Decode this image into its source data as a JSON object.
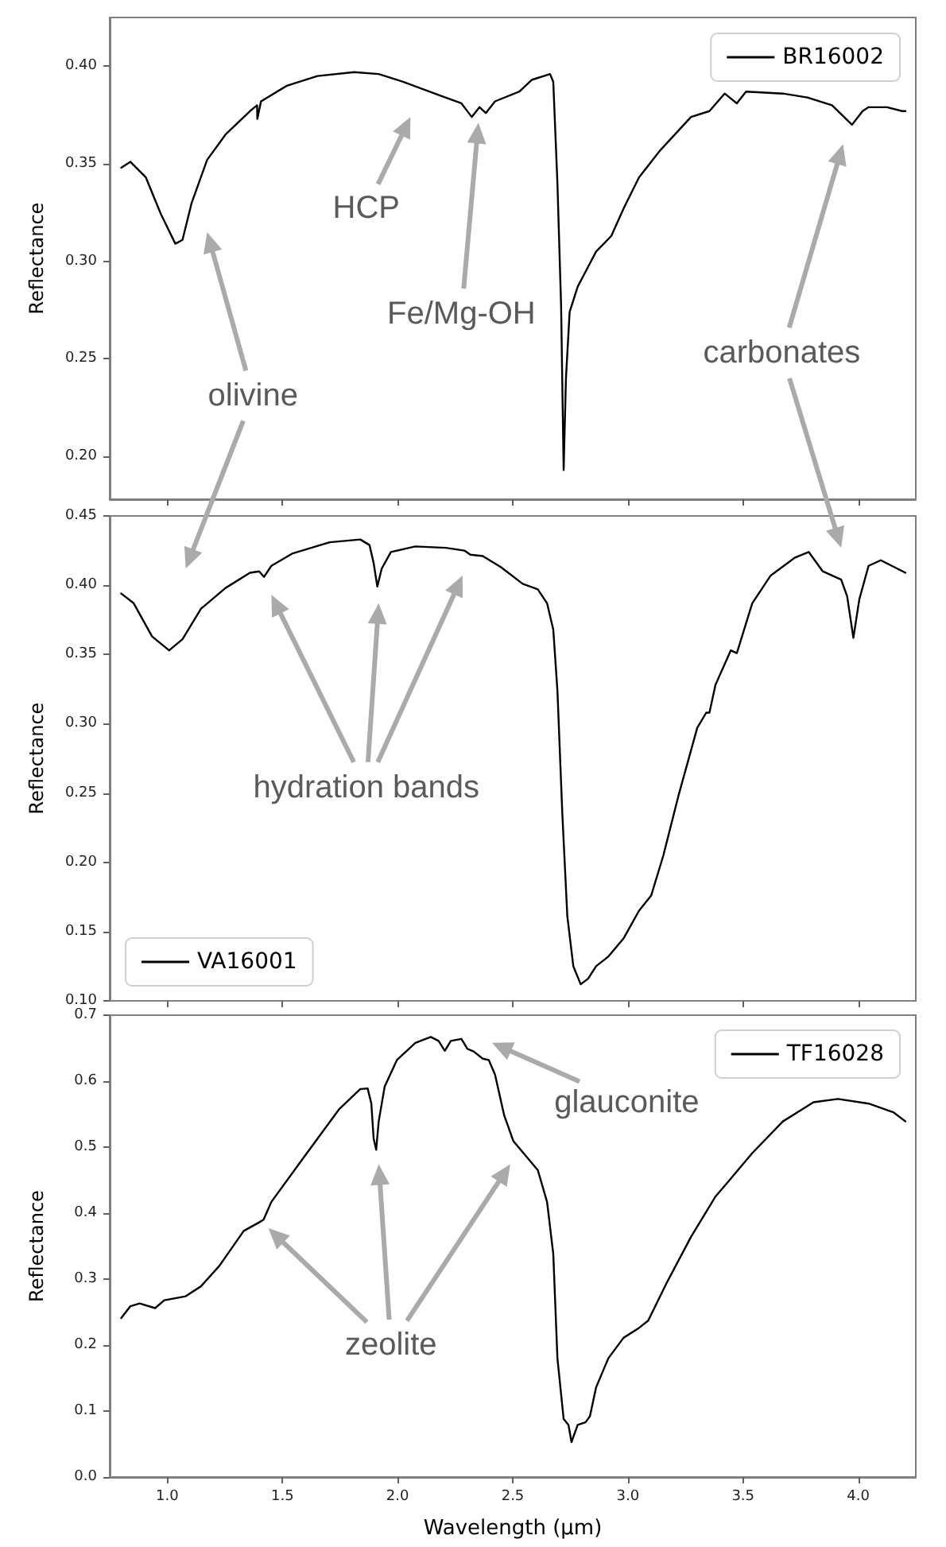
{
  "chart_data": [
    {
      "type": "line",
      "ylabel": "Reflectance",
      "xlim": [
        0.75,
        4.25
      ],
      "ylim": [
        0.178,
        0.425
      ],
      "tick_labels": "y",
      "legend": "top right",
      "xticks": [
        {
          "value": 1,
          "label": null
        },
        {
          "value": 1.5,
          "label": null
        },
        {
          "value": 2,
          "label": null
        },
        {
          "value": 2.5,
          "label": null
        },
        {
          "value": 3,
          "label": null
        },
        {
          "value": 3.5,
          "label": null
        },
        {
          "value": 4,
          "label": null
        }
      ],
      "yticks": [
        {
          "value": 0.2,
          "label": "0.20"
        },
        {
          "value": 0.25,
          "label": "0.25"
        },
        {
          "value": 0.3,
          "label": "0.30"
        },
        {
          "value": 0.35,
          "label": "0.35"
        },
        {
          "value": 0.4,
          "label": "0.40"
        }
      ],
      "annotations": [
        "olivine",
        "HCP",
        "Fe/Mg-OH",
        "carbonates"
      ],
      "series": [
        {
          "name": "BR16002",
          "color": "#000000",
          "x": [
            0.8,
            0.84,
            0.907,
            0.973,
            1.035,
            1.066,
            1.106,
            1.173,
            1.253,
            1.359,
            1.39,
            1.391,
            1.407,
            1.519,
            1.652,
            1.811,
            1.918,
            2.024,
            2.184,
            2.277,
            2.322,
            2.356,
            2.383,
            2.423,
            2.529,
            2.582,
            2.662,
            2.676,
            2.694,
            2.71,
            2.721,
            2.731,
            2.747,
            2.782,
            2.822,
            2.862,
            2.928,
            2.981,
            3.048,
            3.141,
            3.274,
            3.354,
            3.42,
            3.473,
            3.513,
            3.673,
            3.779,
            3.886,
            3.973,
            4.019,
            4.045,
            4.125,
            4.191,
            4.205
          ],
          "values": [
            0.348,
            0.351,
            0.343,
            0.324,
            0.309,
            0.311,
            0.33,
            0.352,
            0.365,
            0.377,
            0.38,
            0.373,
            0.382,
            0.39,
            0.395,
            0.397,
            0.396,
            0.392,
            0.385,
            0.381,
            0.374,
            0.379,
            0.376,
            0.382,
            0.387,
            0.393,
            0.396,
            0.392,
            0.34,
            0.277,
            0.193,
            0.24,
            0.274,
            0.287,
            0.296,
            0.305,
            0.313,
            0.327,
            0.343,
            0.357,
            0.374,
            0.377,
            0.386,
            0.381,
            0.387,
            0.386,
            0.384,
            0.38,
            0.37,
            0.377,
            0.379,
            0.379,
            0.377,
            0.377
          ]
        }
      ]
    },
    {
      "type": "line",
      "ylabel": "Reflectance",
      "xlim": [
        0.75,
        4.25
      ],
      "ylim": [
        0.1,
        0.45
      ],
      "tick_labels": "y",
      "legend": "bottom left",
      "xticks": [
        {
          "value": 1,
          "label": null
        },
        {
          "value": 1.5,
          "label": null
        },
        {
          "value": 2,
          "label": null
        },
        {
          "value": 2.5,
          "label": null
        },
        {
          "value": 3,
          "label": null
        },
        {
          "value": 3.5,
          "label": null
        },
        {
          "value": 4,
          "label": null
        }
      ],
      "yticks": [
        {
          "value": 0.1,
          "label": "0.10"
        },
        {
          "value": 0.15,
          "label": "0.15"
        },
        {
          "value": 0.2,
          "label": "0.20"
        },
        {
          "value": 0.25,
          "label": "0.25"
        },
        {
          "value": 0.3,
          "label": "0.30"
        },
        {
          "value": 0.35,
          "label": "0.35"
        },
        {
          "value": 0.4,
          "label": "0.40"
        },
        {
          "value": 0.45,
          "label": "0.45"
        }
      ],
      "annotations": [
        "hydration bands"
      ],
      "series": [
        {
          "name": "VA16001",
          "color": "#000000",
          "x": [
            0.8,
            0.854,
            0.934,
            1.008,
            1.066,
            1.146,
            1.253,
            1.359,
            1.399,
            1.42,
            1.452,
            1.545,
            1.705,
            1.838,
            1.878,
            1.896,
            1.912,
            1.931,
            1.971,
            2.077,
            2.21,
            2.29,
            2.316,
            2.37,
            2.449,
            2.543,
            2.609,
            2.649,
            2.676,
            2.694,
            2.715,
            2.737,
            2.763,
            2.795,
            2.827,
            2.862,
            2.915,
            2.981,
            3.048,
            3.101,
            3.154,
            3.221,
            3.301,
            3.34,
            3.354,
            3.38,
            3.447,
            3.473,
            3.54,
            3.62,
            3.726,
            3.785,
            3.846,
            3.926,
            3.952,
            3.979,
            4.005,
            4.045,
            4.098,
            4.205
          ],
          "values": [
            0.394,
            0.387,
            0.363,
            0.353,
            0.361,
            0.383,
            0.398,
            0.409,
            0.41,
            0.406,
            0.414,
            0.423,
            0.431,
            0.433,
            0.429,
            0.416,
            0.399,
            0.412,
            0.424,
            0.428,
            0.427,
            0.425,
            0.422,
            0.421,
            0.413,
            0.401,
            0.397,
            0.387,
            0.368,
            0.324,
            0.236,
            0.161,
            0.125,
            0.112,
            0.116,
            0.125,
            0.132,
            0.145,
            0.165,
            0.176,
            0.205,
            0.249,
            0.297,
            0.308,
            0.308,
            0.328,
            0.353,
            0.351,
            0.387,
            0.407,
            0.42,
            0.424,
            0.41,
            0.404,
            0.392,
            0.362,
            0.39,
            0.414,
            0.418,
            0.409
          ]
        }
      ]
    },
    {
      "type": "line",
      "xlabel": "Wavelength (μm)",
      "ylabel": "Reflectance",
      "xlim": [
        0.75,
        4.25
      ],
      "ylim": [
        0,
        0.7
      ],
      "legend": "top right",
      "xticks": [
        {
          "value": 1,
          "label": "1.0"
        },
        {
          "value": 1.5,
          "label": "1.5"
        },
        {
          "value": 2,
          "label": "2.0"
        },
        {
          "value": 2.5,
          "label": "2.5"
        },
        {
          "value": 3,
          "label": "3.0"
        },
        {
          "value": 3.5,
          "label": "3.5"
        },
        {
          "value": 4,
          "label": "4.0"
        }
      ],
      "yticks": [
        {
          "value": 0,
          "label": "0.0"
        },
        {
          "value": 0.1,
          "label": "0.1"
        },
        {
          "value": 0.2,
          "label": "0.2"
        },
        {
          "value": 0.3,
          "label": "0.3"
        },
        {
          "value": 0.4,
          "label": "0.4"
        },
        {
          "value": 0.5,
          "label": "0.5"
        },
        {
          "value": 0.6,
          "label": "0.6"
        },
        {
          "value": 0.7,
          "label": "0.7"
        }
      ],
      "annotations": [
        "zeolite",
        "glauconite"
      ],
      "series": [
        {
          "name": "TF16028",
          "color": "#000000",
          "x": [
            0.8,
            0.84,
            0.88,
            0.947,
            0.987,
            1.08,
            1.146,
            1.226,
            1.332,
            1.399,
            1.418,
            1.452,
            1.598,
            1.745,
            1.838,
            1.87,
            1.886,
            1.896,
            1.907,
            1.918,
            1.944,
            1.997,
            2.077,
            2.144,
            2.178,
            2.205,
            2.231,
            2.277,
            2.303,
            2.33,
            2.37,
            2.396,
            2.423,
            2.463,
            2.503,
            2.556,
            2.609,
            2.649,
            2.676,
            2.694,
            2.721,
            2.742,
            2.755,
            2.782,
            2.816,
            2.835,
            2.862,
            2.915,
            2.981,
            3.048,
            3.088,
            3.168,
            3.274,
            3.38,
            3.434,
            3.54,
            3.673,
            3.806,
            3.912,
            4.045,
            4.152,
            4.205
          ],
          "values": [
            0.241,
            0.259,
            0.263,
            0.256,
            0.268,
            0.274,
            0.289,
            0.32,
            0.373,
            0.386,
            0.39,
            0.417,
            0.487,
            0.557,
            0.588,
            0.589,
            0.566,
            0.513,
            0.496,
            0.539,
            0.592,
            0.632,
            0.658,
            0.667,
            0.661,
            0.646,
            0.661,
            0.664,
            0.649,
            0.645,
            0.634,
            0.632,
            0.61,
            0.548,
            0.509,
            0.487,
            0.465,
            0.417,
            0.338,
            0.18,
            0.088,
            0.079,
            0.053,
            0.079,
            0.083,
            0.092,
            0.136,
            0.18,
            0.211,
            0.226,
            0.237,
            0.294,
            0.364,
            0.425,
            0.447,
            0.491,
            0.539,
            0.568,
            0.573,
            0.566,
            0.553,
            0.539
          ]
        }
      ]
    }
  ]
}
